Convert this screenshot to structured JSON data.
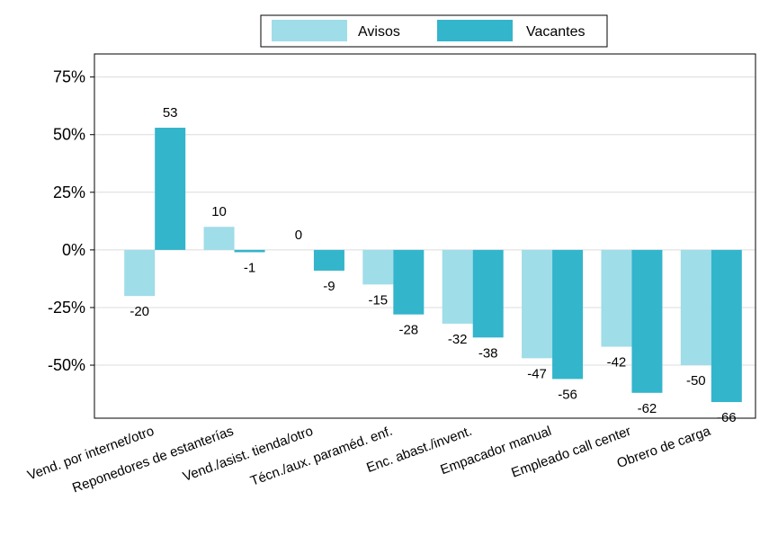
{
  "chart_data": {
    "type": "bar",
    "categories": [
      "Vend. por internet/otro",
      "Reponedores de estanterías",
      "Vend./asist. tienda/otro",
      "Técn./aux. paraméd. enf.",
      "Enc. abast./invent.",
      "Empacador manual",
      "Empleado call center",
      "Obrero de carga"
    ],
    "series": [
      {
        "name": "Avisos",
        "color": "#9fdde8",
        "values": [
          -20,
          10,
          0,
          -15,
          -32,
          -47,
          -42,
          -50
        ]
      },
      {
        "name": "Vacantes",
        "color": "#33b5cc",
        "values": [
          53,
          -1,
          -9,
          -28,
          -38,
          -56,
          -62,
          -66
        ]
      }
    ],
    "ylim": [
      -73,
      85
    ],
    "yticks": [
      {
        "value": -50,
        "label": "-50%"
      },
      {
        "value": -25,
        "label": "-25%"
      },
      {
        "value": 0,
        "label": "0%"
      },
      {
        "value": 25,
        "label": "25%"
      },
      {
        "value": 50,
        "label": "50%"
      },
      {
        "value": 75,
        "label": "75%"
      }
    ],
    "grid": true,
    "legend": "top"
  }
}
